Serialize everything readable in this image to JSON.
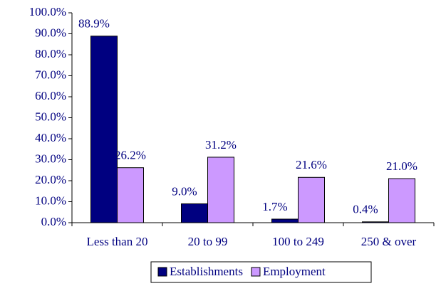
{
  "chart_data": {
    "type": "bar",
    "categories": [
      "Less than 20",
      "20 to 99",
      "100 to 249",
      "250 & over"
    ],
    "series": [
      {
        "name": "Establishments",
        "color": "#000080",
        "values": [
          88.9,
          9.0,
          1.7,
          0.4
        ],
        "value_labels": [
          "88.9%",
          "9.0%",
          "1.7%",
          "0.4%"
        ]
      },
      {
        "name": "Employment",
        "color": "#cc99ff",
        "values": [
          26.2,
          31.2,
          21.6,
          21.0
        ],
        "value_labels": [
          "26.2%",
          "31.2%",
          "21.6%",
          "21.0%"
        ]
      }
    ],
    "ylim": [
      0,
      100
    ],
    "yticks": [
      {
        "value": 0,
        "label": "0.0%"
      },
      {
        "value": 10,
        "label": "10.0%"
      },
      {
        "value": 20,
        "label": "20.0%"
      },
      {
        "value": 30,
        "label": "30.0%"
      },
      {
        "value": 40,
        "label": "40.0%"
      },
      {
        "value": 50,
        "label": "50.0%"
      },
      {
        "value": 60,
        "label": "60.0%"
      },
      {
        "value": 70,
        "label": "70.0%"
      },
      {
        "value": 80,
        "label": "80.0%"
      },
      {
        "value": 90,
        "label": "90.0%"
      },
      {
        "value": 100,
        "label": "100.0%"
      }
    ],
    "grid": false,
    "legend": "bottom"
  }
}
